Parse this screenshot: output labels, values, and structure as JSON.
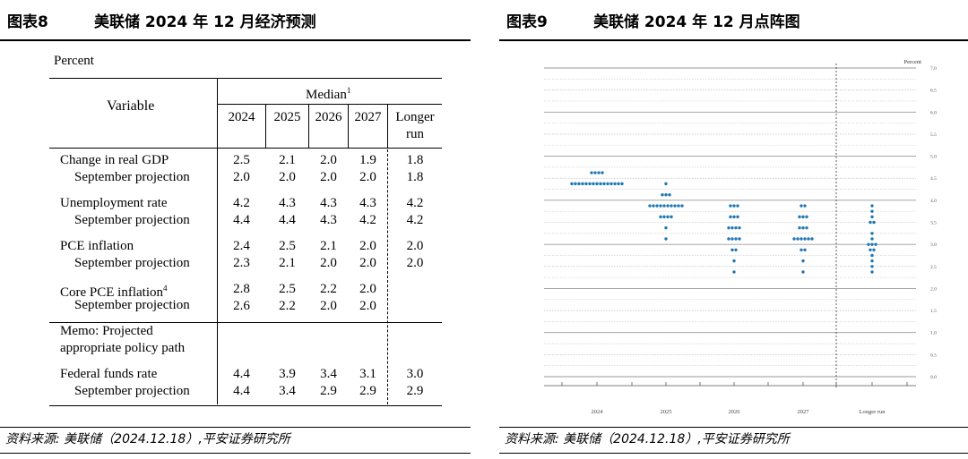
{
  "left": {
    "figure_label": "图表8",
    "figure_title": "美联储 2024 年 12 月经济预测",
    "source": "资料来源: 美联储（2024.12.18）,平安证券研究所",
    "table": {
      "unit": "Percent",
      "variable_header": "Variable",
      "median_header": "Median",
      "median_footnote": "1",
      "years": [
        "2024",
        "2025",
        "2026",
        "2027"
      ],
      "longer_run_line1": "Longer",
      "longer_run_line2": "run",
      "rows": [
        {
          "label": "Change in real GDP",
          "values": [
            "2.5",
            "2.1",
            "2.0",
            "1.9",
            "1.8"
          ],
          "sept_label": "September projection",
          "sept_values": [
            "2.0",
            "2.0",
            "2.0",
            "2.0",
            "1.8"
          ]
        },
        {
          "label": "Unemployment rate",
          "values": [
            "4.2",
            "4.3",
            "4.3",
            "4.3",
            "4.2"
          ],
          "sept_label": "September projection",
          "sept_values": [
            "4.4",
            "4.4",
            "4.3",
            "4.2",
            "4.2"
          ]
        },
        {
          "label": "PCE inflation",
          "values": [
            "2.4",
            "2.5",
            "2.1",
            "2.0",
            "2.0"
          ],
          "sept_label": "September projection",
          "sept_values": [
            "2.3",
            "2.1",
            "2.0",
            "2.0",
            "2.0"
          ]
        },
        {
          "label": "Core PCE inflation",
          "footnote": "4",
          "values": [
            "2.8",
            "2.5",
            "2.2",
            "2.0",
            ""
          ],
          "sept_label": "September projection",
          "sept_values": [
            "2.6",
            "2.2",
            "2.0",
            "2.0",
            ""
          ]
        }
      ],
      "memo_line1": "Memo: Projected",
      "memo_line2": "appropriate policy path",
      "ffr": {
        "label": "Federal funds rate",
        "values": [
          "4.4",
          "3.9",
          "3.4",
          "3.1",
          "3.0"
        ],
        "sept_label": "September projection",
        "sept_values": [
          "4.4",
          "3.4",
          "2.9",
          "2.9",
          "2.9"
        ]
      }
    }
  },
  "right": {
    "figure_label": "图表9",
    "figure_title": "美联储 2024 年 12 月点阵图",
    "source": "资料来源: 美联储（2024.12.18）,平安证券研究所",
    "chart_data": {
      "type": "scatter",
      "y_unit_label": "Percent",
      "ylim": [
        0,
        7.0
      ],
      "y_ticks": [
        "0.0",
        "0.5",
        "1.0",
        "1.5",
        "2.0",
        "2.5",
        "3.0",
        "3.5",
        "4.0",
        "4.5",
        "5.0",
        "5.5",
        "6.0",
        "6.5",
        "7.0"
      ],
      "categories": [
        "2024",
        "2025",
        "2026",
        "2027",
        "Longer run"
      ],
      "dot_color": "#1f77b4",
      "dots": {
        "2024": [
          [
            4.625,
            4
          ],
          [
            4.375,
            15
          ]
        ],
        "2025": [
          [
            4.375,
            1
          ],
          [
            4.125,
            3
          ],
          [
            3.875,
            10
          ],
          [
            3.625,
            4
          ],
          [
            3.375,
            1
          ],
          [
            3.125,
            1
          ]
        ],
        "2026": [
          [
            3.875,
            3
          ],
          [
            3.625,
            3
          ],
          [
            3.375,
            4
          ],
          [
            3.125,
            4
          ],
          [
            2.875,
            2
          ],
          [
            2.625,
            1
          ],
          [
            2.375,
            1
          ]
        ],
        "2027": [
          [
            3.875,
            2
          ],
          [
            3.625,
            3
          ],
          [
            3.375,
            3
          ],
          [
            3.125,
            6
          ],
          [
            2.875,
            2
          ],
          [
            2.625,
            1
          ],
          [
            2.375,
            1
          ]
        ],
        "Longer run": [
          [
            3.875,
            1
          ],
          [
            3.75,
            1
          ],
          [
            3.625,
            1
          ],
          [
            3.5,
            2
          ],
          [
            3.25,
            1
          ],
          [
            3.125,
            1
          ],
          [
            3.0,
            3
          ],
          [
            2.875,
            2
          ],
          [
            2.75,
            1
          ],
          [
            2.625,
            1
          ],
          [
            2.5,
            1
          ],
          [
            2.375,
            1
          ]
        ]
      }
    }
  }
}
